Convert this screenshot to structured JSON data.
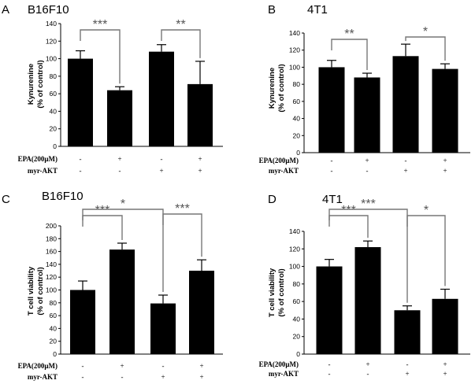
{
  "chart_data": [
    {
      "panel": "A",
      "title": "B16F10",
      "type": "bar",
      "categories": [
        "1",
        "2",
        "3",
        "4"
      ],
      "values": [
        100,
        64,
        108,
        71
      ],
      "errors": [
        9,
        4,
        8,
        26
      ],
      "ylim": [
        0,
        140
      ],
      "yticks": [
        "0",
        "20",
        "40",
        "60",
        "80",
        "100",
        "120",
        "140"
      ],
      "ylabel": [
        "Kynurenine",
        "(% of control)"
      ],
      "conditions": [
        {
          "label": "EPA(200μM)",
          "values": [
            "-",
            "+",
            "-",
            "+"
          ]
        },
        {
          "label": "myr-AKT",
          "values": [
            "-",
            "-",
            "+",
            "+"
          ]
        }
      ],
      "significance": [
        {
          "from": 0,
          "to": 1,
          "label": "***"
        },
        {
          "from": 2,
          "to": 3,
          "label": "**"
        }
      ]
    },
    {
      "panel": "B",
      "title": "4T1",
      "type": "bar",
      "categories": [
        "1",
        "2",
        "3",
        "4"
      ],
      "values": [
        100,
        88,
        113,
        98
      ],
      "errors": [
        8,
        5,
        14,
        6
      ],
      "ylim": [
        0,
        140
      ],
      "yticks": [
        "0",
        "20",
        "40",
        "60",
        "80",
        "100",
        "120",
        "140"
      ],
      "ylabel": [
        "Kynurenine",
        "(% of control)"
      ],
      "conditions": [
        {
          "label": "EPA(200μM)",
          "values": [
            "-",
            "+",
            "-",
            "+"
          ]
        },
        {
          "label": "myr-AKT",
          "values": [
            "-",
            "-",
            "+",
            "+"
          ]
        }
      ],
      "significance": [
        {
          "from": 0,
          "to": 1,
          "label": "**"
        },
        {
          "from": 2,
          "to": 3,
          "label": "*"
        }
      ]
    },
    {
      "panel": "C",
      "title": "B16F10",
      "type": "bar",
      "categories": [
        "1",
        "2",
        "3",
        "4"
      ],
      "values": [
        100,
        163,
        79,
        130
      ],
      "errors": [
        14,
        10,
        13,
        17
      ],
      "ylim": [
        0,
        200
      ],
      "yticks": [
        "0",
        "20",
        "40",
        "60",
        "80",
        "100",
        "120",
        "140",
        "160",
        "180",
        "200"
      ],
      "ylabel": [
        "T cell viability",
        "(% of control)"
      ],
      "conditions": [
        {
          "label": "EPA(200μM)",
          "values": [
            "-",
            "+",
            "-",
            "+"
          ]
        },
        {
          "label": "myr-AKT",
          "values": [
            "-",
            "-",
            "+",
            "+"
          ]
        }
      ],
      "significance": [
        {
          "from": 0,
          "to": 1,
          "label": "***"
        },
        {
          "from": 0,
          "to": 2,
          "label": "*"
        },
        {
          "from": 2,
          "to": 3,
          "label": "***"
        }
      ]
    },
    {
      "panel": "D",
      "title": "4T1",
      "type": "bar",
      "categories": [
        "1",
        "2",
        "3",
        "4"
      ],
      "values": [
        100,
        122,
        50,
        63
      ],
      "errors": [
        8,
        7,
        5,
        11
      ],
      "ylim": [
        0,
        140
      ],
      "yticks": [
        "0",
        "20",
        "40",
        "60",
        "80",
        "100",
        "120",
        "140"
      ],
      "ylabel": [
        "T cell viability",
        "(% of control)"
      ],
      "conditions": [
        {
          "label": "EPA(200μM)",
          "values": [
            "-",
            "+",
            "-",
            "+"
          ]
        },
        {
          "label": "myr-AKT",
          "values": [
            "-",
            "-",
            "+",
            "+"
          ]
        }
      ],
      "significance": [
        {
          "from": 0,
          "to": 1,
          "label": "***"
        },
        {
          "from": 0,
          "to": 2,
          "label": "***"
        },
        {
          "from": 2,
          "to": 3,
          "label": "*"
        }
      ]
    }
  ]
}
